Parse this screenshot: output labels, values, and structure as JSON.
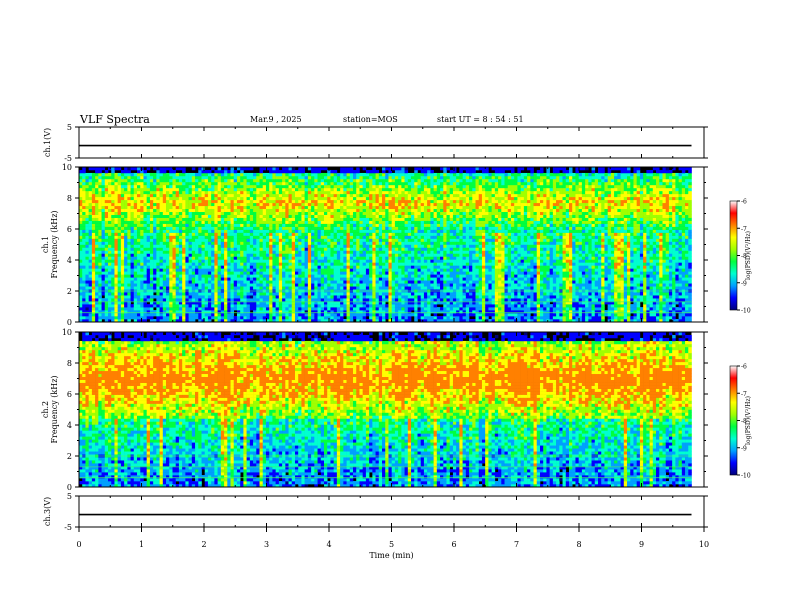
{
  "header": {
    "title": "VLF Spectra",
    "date": "Mar.9  , 2025",
    "station": "station=MOS",
    "start_ut": "start  UT  =   8  : 54 : 51"
  },
  "chart_data": [
    {
      "type": "line",
      "name": "ch1-voltage",
      "ylabel": "ch.1(V)",
      "ylim": [
        -5,
        5
      ],
      "yticks": [
        "5",
        "-5"
      ],
      "x": [
        0,
        9.8
      ],
      "values": [
        -1,
        -1
      ]
    },
    {
      "type": "heatmap",
      "name": "ch1-spectrogram",
      "ylabel_lines": [
        "ch.1",
        "Frequency (kHz)"
      ],
      "ylim": [
        0,
        10
      ],
      "yticks": [
        "10",
        "8",
        "6",
        "4",
        "2",
        "0"
      ],
      "xlim": [
        0,
        10
      ],
      "data_extent_x": [
        0,
        9.8
      ],
      "band_description": "strong emission 6-9.5 kHz, weaker below",
      "colorbar": {
        "label": "log(PSD)(V²/Hz)",
        "range": [
          -10,
          -6
        ],
        "ticks": [
          "-6",
          "-7",
          "-8",
          "-9",
          "-10"
        ]
      }
    },
    {
      "type": "heatmap",
      "name": "ch2-spectrogram",
      "ylabel_lines": [
        "ch.2",
        "Frequency (kHz)"
      ],
      "ylim": [
        0,
        10
      ],
      "yticks": [
        "10",
        "8",
        "6",
        "4",
        "2",
        "0"
      ],
      "xlim": [
        0,
        10
      ],
      "data_extent_x": [
        0,
        9.8
      ],
      "colorbar": {
        "label": "log(PSD)(V²/Hz)",
        "range": [
          -10,
          -6
        ],
        "ticks": [
          "-6",
          "-7",
          "-8",
          "-9",
          "-10"
        ]
      }
    },
    {
      "type": "line",
      "name": "ch3-voltage",
      "ylabel": "ch.3(V)",
      "ylim": [
        -5,
        5
      ],
      "yticks": [
        "5",
        "-5"
      ],
      "x": [
        0,
        9.8
      ],
      "values": [
        -1,
        -1
      ]
    }
  ],
  "xaxis": {
    "label": "Time  (min)",
    "ticks": [
      "0",
      "1",
      "2",
      "3",
      "4",
      "5",
      "6",
      "7",
      "8",
      "9",
      "10"
    ]
  },
  "colors": {
    "background": "#000000",
    "colormap": [
      "#00007a",
      "#0000ff",
      "#00a0ff",
      "#00ffd0",
      "#00ff40",
      "#a0ff00",
      "#ffff00",
      "#ff8000",
      "#ff0000",
      "#ffffff"
    ]
  }
}
